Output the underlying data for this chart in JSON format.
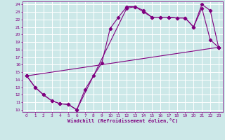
{
  "xlabel": "Windchill (Refroidissement éolien,°C)",
  "background_color": "#cce8e8",
  "grid_color": "#ffffff",
  "line_color": "#800080",
  "xlim": [
    -0.5,
    23.5
  ],
  "ylim": [
    9.7,
    24.4
  ],
  "xticks": [
    0,
    1,
    2,
    3,
    4,
    5,
    6,
    7,
    8,
    9,
    10,
    11,
    12,
    13,
    14,
    15,
    16,
    17,
    18,
    19,
    20,
    21,
    22,
    23
  ],
  "yticks": [
    10,
    11,
    12,
    13,
    14,
    15,
    16,
    17,
    18,
    19,
    20,
    21,
    22,
    23,
    24
  ],
  "line1_x": [
    0,
    1,
    2,
    3,
    4,
    5,
    6,
    7,
    8,
    9,
    10,
    11,
    12,
    13,
    14,
    15,
    16,
    17,
    18,
    19,
    20,
    21,
    22,
    23
  ],
  "line1_y": [
    14.5,
    13.0,
    12.0,
    11.2,
    10.8,
    10.7,
    10.0,
    12.7,
    14.5,
    16.2,
    20.8,
    22.3,
    23.7,
    23.7,
    23.2,
    22.3,
    22.3,
    22.3,
    22.2,
    22.2,
    21.0,
    23.5,
    19.3,
    18.3
  ],
  "line2_x": [
    0,
    1,
    2,
    3,
    4,
    5,
    6,
    12,
    13,
    14,
    15,
    16,
    17,
    18,
    19,
    20,
    21,
    22,
    23
  ],
  "line2_y": [
    14.5,
    13.0,
    12.0,
    11.2,
    10.8,
    10.7,
    10.0,
    23.5,
    23.7,
    23.0,
    22.3,
    22.3,
    22.3,
    22.2,
    22.2,
    21.0,
    24.0,
    23.2,
    18.3
  ],
  "line3_x": [
    0,
    23
  ],
  "line3_y": [
    14.5,
    18.3
  ]
}
